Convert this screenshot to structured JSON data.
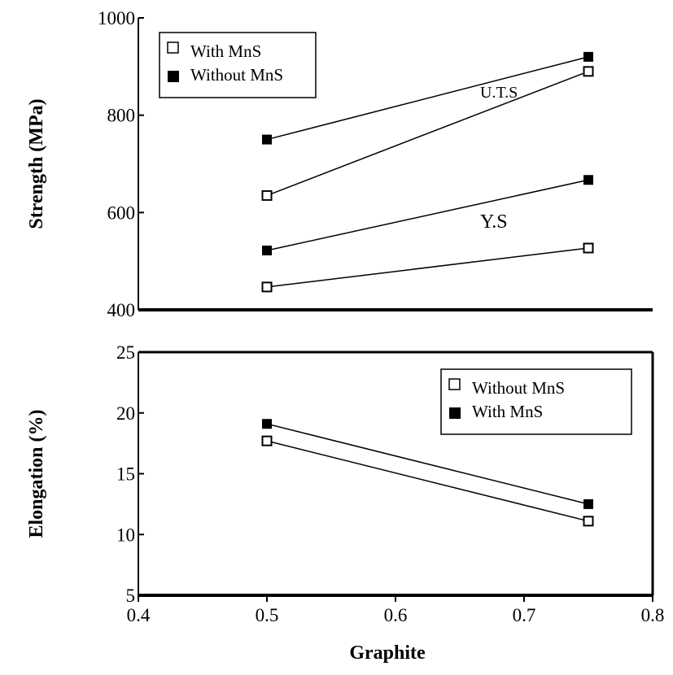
{
  "chart_data": [
    {
      "type": "line",
      "ylabel": "Strength (MPa)",
      "ylim": [
        400,
        1000
      ],
      "yticks": [
        400,
        600,
        800,
        1000
      ],
      "xlim": [
        0.4,
        0.8
      ],
      "legend": {
        "placement": "top-left",
        "entries": [
          {
            "marker": "open-square",
            "label": "With     MnS"
          },
          {
            "marker": "filled-square",
            "label": "Without MnS"
          }
        ]
      },
      "annotations": [
        {
          "text": "U.T.S",
          "x": 0.7,
          "y": 850
        },
        {
          "text": "Y.S",
          "x": 0.7,
          "y": 582
        }
      ],
      "series": [
        {
          "name": "Without MnS",
          "group": "U.T.S",
          "marker": "filled-square",
          "x": [
            0.5,
            0.75
          ],
          "y": [
            750,
            920
          ]
        },
        {
          "name": "With     MnS",
          "group": "U.T.S",
          "marker": "open-square",
          "x": [
            0.5,
            0.75
          ],
          "y": [
            635,
            890
          ]
        },
        {
          "name": "Without MnS",
          "group": "Y.S",
          "marker": "filled-square",
          "x": [
            0.5,
            0.75
          ],
          "y": [
            522,
            667
          ]
        },
        {
          "name": "With     MnS",
          "group": "Y.S",
          "marker": "open-square",
          "x": [
            0.5,
            0.75
          ],
          "y": [
            447,
            527
          ]
        }
      ]
    },
    {
      "type": "line",
      "xlabel": "Graphite",
      "ylabel": "Elongation (%)",
      "xlim": [
        0.4,
        0.8
      ],
      "ylim": [
        5,
        25
      ],
      "xticks": [
        0.4,
        0.5,
        0.6,
        0.7,
        0.8
      ],
      "yticks": [
        5,
        10,
        15,
        20,
        25
      ],
      "legend": {
        "placement": "top-right",
        "entries": [
          {
            "marker": "open-square",
            "label": "Without MnS"
          },
          {
            "marker": "filled-square",
            "label": "With     MnS"
          }
        ]
      },
      "series": [
        {
          "name": "With     MnS",
          "marker": "filled-square",
          "x": [
            0.5,
            0.75
          ],
          "y": [
            19.1,
            12.5
          ]
        },
        {
          "name": "Without MnS",
          "marker": "open-square",
          "x": [
            0.5,
            0.75
          ],
          "y": [
            17.7,
            11.1
          ]
        }
      ]
    }
  ]
}
